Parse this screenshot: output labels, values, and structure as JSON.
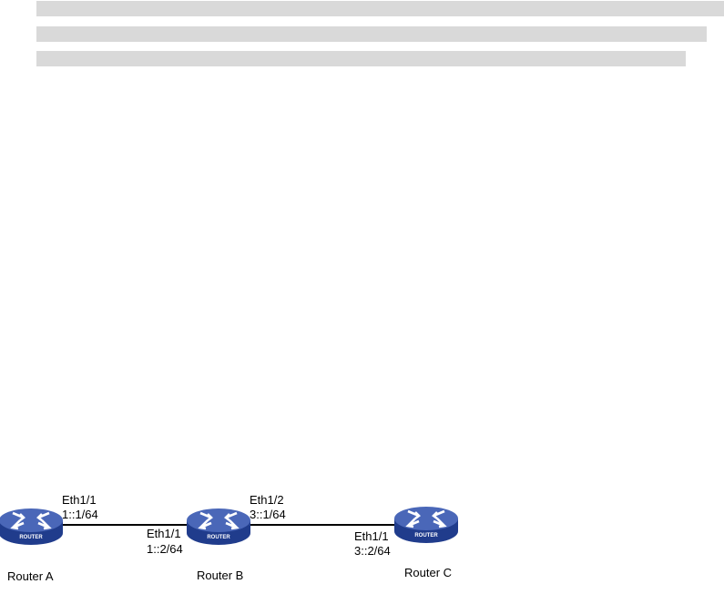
{
  "colors": {
    "highlight": "#d9d9d9",
    "router_top": "#4a67b8",
    "router_side": "#203c8c",
    "link": "#000000"
  },
  "routers": [
    {
      "name": "Router A",
      "badge": "ROUTER"
    },
    {
      "name": "Router B",
      "badge": "ROUTER"
    },
    {
      "name": "Router C",
      "badge": "ROUTER"
    }
  ],
  "links": [
    {
      "a_if": "Eth1/1",
      "a_ip": "1::1/64",
      "b_if": "Eth1/1",
      "b_ip": "1::2/64"
    },
    {
      "a_if": "Eth1/2",
      "a_ip": "3::1/64",
      "b_if": "Eth1/1",
      "b_ip": "3::2/64"
    }
  ]
}
